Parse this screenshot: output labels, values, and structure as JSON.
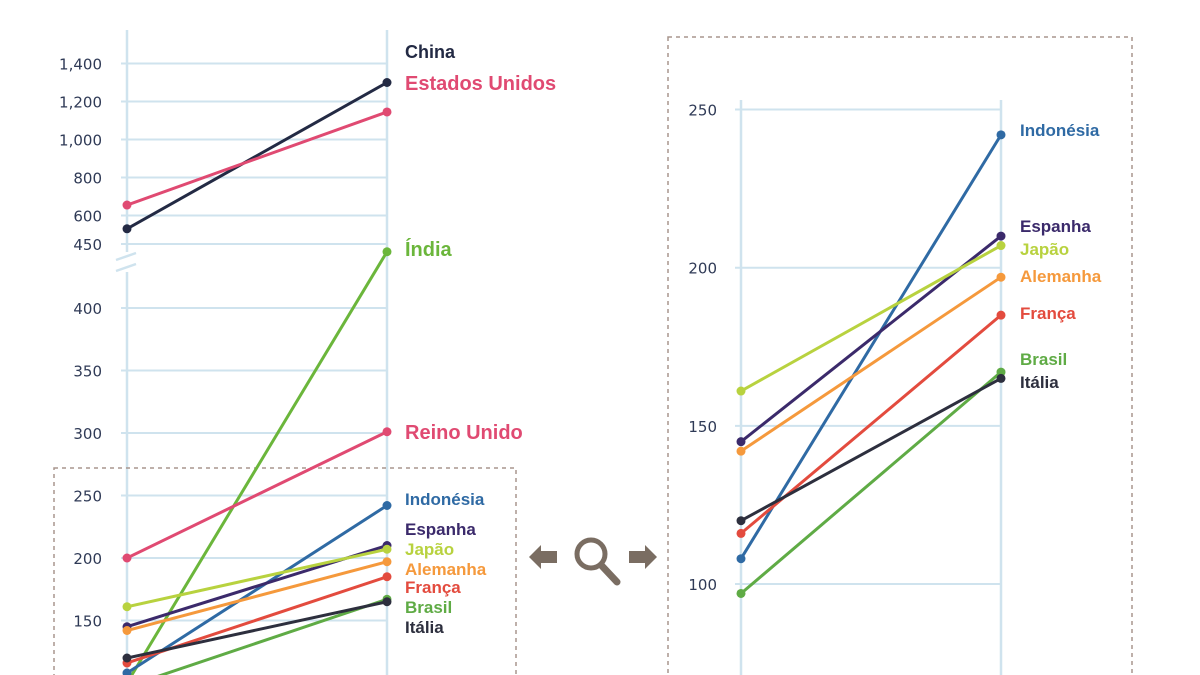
{
  "chart_data": [
    {
      "type": "line",
      "y_axis_break": [
        400,
        450
      ],
      "ylim": [
        100,
        1400
      ],
      "yticks": [
        "1,400",
        "1,200",
        "1,000",
        "800",
        "600",
        "450",
        "400",
        "350",
        "300",
        "250",
        "200",
        "150"
      ],
      "series": [
        {
          "name": "China",
          "color": "#232a44",
          "values": [
            530,
            1300
          ]
        },
        {
          "name": "Estados Unidos",
          "color": "#e04a72",
          "values": [
            655,
            1145
          ]
        },
        {
          "name": "Índia",
          "color": "#6bb63b",
          "values": [
            100,
            445
          ]
        },
        {
          "name": "Reino Unido",
          "color": "#e04a72",
          "values": [
            200,
            301
          ]
        },
        {
          "name": "Indonésia",
          "color": "#2f6aa4",
          "values": [
            108,
            242
          ]
        },
        {
          "name": "Espanha",
          "color": "#3b2a6b",
          "values": [
            145,
            210
          ]
        },
        {
          "name": "Japão",
          "color": "#b8d23f",
          "values": [
            161,
            207
          ]
        },
        {
          "name": "Alemanha",
          "color": "#f5993c",
          "values": [
            142,
            197
          ]
        },
        {
          "name": "França",
          "color": "#e34b3e",
          "values": [
            116,
            185
          ]
        },
        {
          "name": "Brasil",
          "color": "#5fab45",
          "values": [
            97,
            167
          ]
        },
        {
          "name": "Itália",
          "color": "#2d2f3e",
          "values": [
            120,
            165
          ]
        }
      ]
    },
    {
      "type": "line",
      "ylim": [
        100,
        250
      ],
      "yticks": [
        "250",
        "200",
        "150",
        "100"
      ],
      "series": [
        {
          "name": "Indonésia",
          "color": "#2f6aa4",
          "values": [
            108,
            242
          ]
        },
        {
          "name": "Espanha",
          "color": "#3b2a6b",
          "values": [
            145,
            210
          ]
        },
        {
          "name": "Japão",
          "color": "#b8d23f",
          "values": [
            161,
            207
          ]
        },
        {
          "name": "Alemanha",
          "color": "#f5993c",
          "values": [
            142,
            197
          ]
        },
        {
          "name": "França",
          "color": "#e34b3e",
          "values": [
            116,
            185
          ]
        },
        {
          "name": "Brasil",
          "color": "#5fab45",
          "values": [
            97,
            167
          ]
        },
        {
          "name": "Itália",
          "color": "#2d2f3e",
          "values": [
            120,
            165
          ]
        }
      ]
    }
  ],
  "icons": {
    "zoom": "magnifier-icon",
    "left_arrow": "arrow-left-icon",
    "right_arrow": "arrow-right-icon"
  },
  "colors": {
    "grid": "#cfe3ee",
    "tick": "#2f3a56",
    "dash": "#a8968e"
  }
}
